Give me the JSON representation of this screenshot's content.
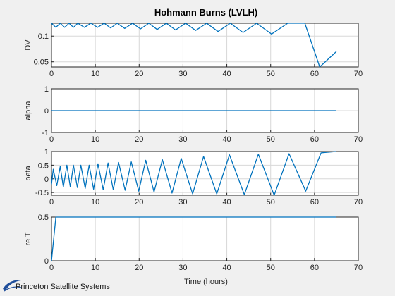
{
  "figure": {
    "title": "Hohmann Burns (LVLH)",
    "xlabel": "Time (hours)",
    "footer_logo_text": "Princeton Satellite Systems"
  },
  "colors": {
    "line": "#0072bd",
    "background": "#f0f0f0",
    "axes_background": "#ffffff",
    "logo_swoosh": "#1f4e9b"
  },
  "chart_data": [
    {
      "type": "line",
      "ylabel": "DV",
      "xlim": [
        0,
        70
      ],
      "ylim": [
        0.04,
        0.125
      ],
      "xticks": [
        0,
        10,
        20,
        30,
        40,
        50,
        60,
        70
      ],
      "yticks": [
        0.05,
        0.1
      ],
      "ytick_labels": [
        "0.05",
        "0.1"
      ],
      "grid": true,
      "series": [
        {
          "x": [
            0,
            1,
            2,
            3,
            4,
            5,
            6,
            7.5,
            9,
            10.5,
            12,
            13.5,
            15,
            16.7,
            18.5,
            20.3,
            22.2,
            24.1,
            26.2,
            28.3,
            30.6,
            32.9,
            35.4,
            38,
            40.8,
            43.7,
            46.8,
            50.2,
            53.9,
            57.8,
            61.2,
            65
          ],
          "y": [
            0.125,
            0.117,
            0.125,
            0.117,
            0.125,
            0.117,
            0.125,
            0.117,
            0.125,
            0.117,
            0.125,
            0.116,
            0.125,
            0.115,
            0.125,
            0.114,
            0.125,
            0.113,
            0.125,
            0.112,
            0.125,
            0.111,
            0.125,
            0.109,
            0.125,
            0.107,
            0.125,
            0.104,
            0.125,
            0.125,
            0.04,
            0.07
          ]
        }
      ]
    },
    {
      "type": "line",
      "ylabel": "alpha",
      "xlim": [
        0,
        70
      ],
      "ylim": [
        -1,
        1
      ],
      "xticks": [
        0,
        10,
        20,
        30,
        40,
        50,
        60,
        70
      ],
      "yticks": [
        -1,
        0,
        1
      ],
      "ytick_labels": [
        "-1",
        "0",
        "1"
      ],
      "grid": true,
      "series": [
        {
          "x": [
            0,
            65
          ],
          "y": [
            0,
            0
          ]
        }
      ]
    },
    {
      "type": "line",
      "ylabel": "beta",
      "xlim": [
        0,
        70
      ],
      "ylim": [
        -0.6,
        1
      ],
      "xticks": [
        0,
        10,
        20,
        30,
        40,
        50,
        60,
        70
      ],
      "yticks": [
        -0.5,
        0,
        0.5,
        1
      ],
      "ytick_labels": [
        "-0.5",
        "0",
        "0.5",
        "1"
      ],
      "grid": true,
      "series": [
        {
          "x": [
            0,
            0.4,
            1.2,
            2,
            2.7,
            3.5,
            4.3,
            5,
            5.9,
            6.7,
            7.7,
            8.6,
            9.6,
            10.6,
            11.8,
            12.9,
            14.1,
            15.3,
            16.8,
            18.2,
            19.9,
            21.5,
            23.4,
            25.3,
            27.5,
            29.6,
            32.2,
            34.7,
            37.7,
            40.6,
            44,
            47.2,
            50.8,
            54.2,
            58,
            61.5,
            65
          ],
          "y": [
            -0.2,
            0.35,
            -0.25,
            0.45,
            -0.3,
            0.5,
            -0.3,
            0.5,
            -0.32,
            0.5,
            -0.35,
            0.5,
            -0.38,
            0.55,
            -0.4,
            0.58,
            -0.4,
            0.6,
            -0.42,
            0.62,
            -0.45,
            0.68,
            -0.48,
            0.7,
            -0.52,
            0.75,
            -0.55,
            0.82,
            -0.55,
            0.88,
            -0.58,
            0.9,
            -0.6,
            0.92,
            -0.45,
            0.95,
            1.0
          ]
        }
      ]
    },
    {
      "type": "line",
      "ylabel": "relT",
      "xlim": [
        0,
        70
      ],
      "ylim": [
        0,
        0.5
      ],
      "xticks": [
        0,
        10,
        20,
        30,
        40,
        50,
        60,
        70
      ],
      "yticks": [
        0,
        0.5
      ],
      "ytick_labels": [
        "0",
        "0.5"
      ],
      "grid": true,
      "series": [
        {
          "x": [
            0,
            1,
            65
          ],
          "y": [
            0,
            0.5,
            0.5
          ]
        }
      ]
    }
  ]
}
